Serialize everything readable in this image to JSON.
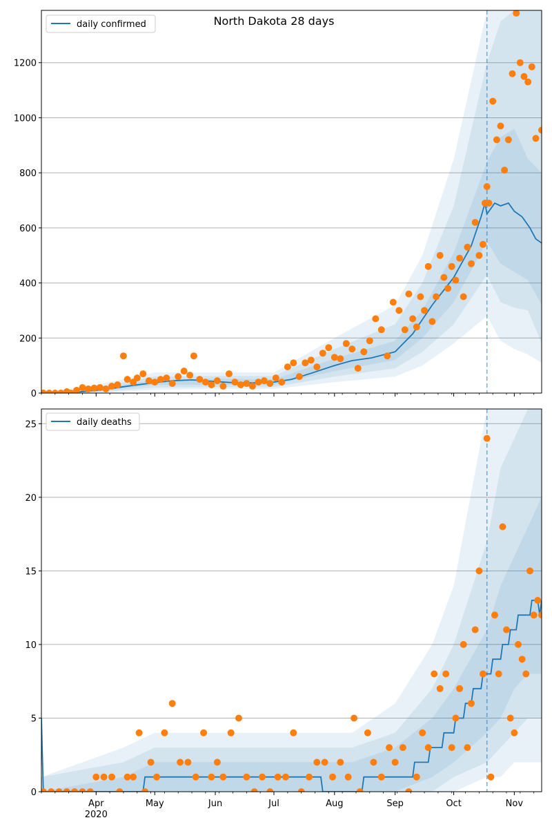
{
  "colors": {
    "line": "#1f77b4",
    "points": "#ff7f0e",
    "band": "#1f77b4",
    "grid": "#b0b0b0"
  },
  "chart_data": [
    {
      "type": "line",
      "title": "North Dakota 28 days",
      "legend": {
        "label": "daily confirmed",
        "placement": "top-left"
      },
      "ylim": [
        0,
        1390
      ],
      "yticks": [
        0,
        200,
        400,
        600,
        800,
        1000,
        1200
      ],
      "xticks": [
        {
          "date": "2020-04-01",
          "label": "Apr",
          "sublabel": "2020"
        },
        {
          "date": "2020-05-01",
          "label": "May"
        },
        {
          "date": "2020-06-01",
          "label": "Jun"
        },
        {
          "date": "2020-07-01",
          "label": "Jul"
        },
        {
          "date": "2020-08-01",
          "label": "Aug"
        },
        {
          "date": "2020-09-01",
          "label": "Sep"
        },
        {
          "date": "2020-10-01",
          "label": "Oct"
        },
        {
          "date": "2020-11-01",
          "label": "Nov"
        }
      ],
      "xlim": [
        "2020-03-04",
        "2020-11-15"
      ],
      "forecast_start": "2020-10-18",
      "grid": "horizontal",
      "line": {
        "x": [
          "2020-03-04",
          "2020-03-20",
          "2020-04-01",
          "2020-04-10",
          "2020-04-20",
          "2020-05-01",
          "2020-05-10",
          "2020-05-20",
          "2020-06-01",
          "2020-06-10",
          "2020-06-20",
          "2020-07-01",
          "2020-07-10",
          "2020-07-20",
          "2020-08-01",
          "2020-08-10",
          "2020-08-20",
          "2020-09-01",
          "2020-09-10",
          "2020-09-20",
          "2020-10-01",
          "2020-10-10",
          "2020-10-15",
          "2020-10-17",
          "2020-10-18",
          "2020-10-22",
          "2020-10-25",
          "2020-10-29",
          "2020-11-01",
          "2020-11-05",
          "2020-11-09",
          "2020-11-12",
          "2020-11-15"
        ],
        "y": [
          0,
          2,
          10,
          18,
          28,
          38,
          45,
          48,
          42,
          38,
          37,
          40,
          50,
          72,
          100,
          118,
          128,
          150,
          215,
          320,
          420,
          535,
          640,
          690,
          650,
          690,
          680,
          690,
          660,
          640,
          600,
          560,
          545
        ]
      },
      "band_inner": {
        "x": [
          "2020-03-04",
          "2020-04-01",
          "2020-05-01",
          "2020-06-01",
          "2020-07-01",
          "2020-08-01",
          "2020-09-01",
          "2020-09-15",
          "2020-10-01",
          "2020-10-18",
          "2020-10-25",
          "2020-11-01",
          "2020-11-08",
          "2020-11-15"
        ],
        "lower": [
          0,
          5,
          30,
          30,
          30,
          80,
          120,
          200,
          330,
          550,
          470,
          440,
          410,
          320
        ],
        "upper": [
          0,
          15,
          48,
          52,
          50,
          125,
          190,
          300,
          510,
          840,
          930,
          960,
          850,
          800
        ]
      },
      "band_mid": {
        "x": [
          "2020-03-04",
          "2020-04-01",
          "2020-05-01",
          "2020-06-01",
          "2020-07-01",
          "2020-08-01",
          "2020-09-01",
          "2020-09-15",
          "2020-10-01",
          "2020-10-18",
          "2020-10-25",
          "2020-11-01",
          "2020-11-08",
          "2020-11-15"
        ],
        "lower": [
          0,
          2,
          20,
          22,
          22,
          60,
          90,
          150,
          250,
          430,
          330,
          310,
          300,
          180
        ],
        "upper": [
          0,
          22,
          60,
          62,
          62,
          160,
          250,
          400,
          680,
          1200,
          1350,
          1390,
          1390,
          1390
        ]
      },
      "band_outer": {
        "x": [
          "2020-03-04",
          "2020-04-01",
          "2020-05-01",
          "2020-06-01",
          "2020-07-01",
          "2020-08-01",
          "2020-09-01",
          "2020-09-15",
          "2020-10-01",
          "2020-10-18",
          "2020-10-25",
          "2020-11-01",
          "2020-11-08",
          "2020-11-15"
        ],
        "lower": [
          0,
          0,
          12,
          15,
          15,
          40,
          60,
          100,
          180,
          280,
          190,
          160,
          140,
          110
        ],
        "upper": [
          0,
          30,
          75,
          75,
          75,
          200,
          320,
          500,
          850,
          1390,
          1390,
          1390,
          1390,
          1390
        ]
      },
      "points": {
        "x": [
          "2020-03-05",
          "2020-03-08",
          "2020-03-11",
          "2020-03-14",
          "2020-03-17",
          "2020-03-19",
          "2020-03-22",
          "2020-03-25",
          "2020-03-28",
          "2020-03-31",
          "2020-04-03",
          "2020-04-06",
          "2020-04-09",
          "2020-04-12",
          "2020-04-15",
          "2020-04-17",
          "2020-04-20",
          "2020-04-22",
          "2020-04-25",
          "2020-04-28",
          "2020-05-01",
          "2020-05-04",
          "2020-05-07",
          "2020-05-10",
          "2020-05-13",
          "2020-05-16",
          "2020-05-19",
          "2020-05-21",
          "2020-05-24",
          "2020-05-27",
          "2020-05-30",
          "2020-06-02",
          "2020-06-05",
          "2020-06-08",
          "2020-06-11",
          "2020-06-14",
          "2020-06-17",
          "2020-06-20",
          "2020-06-23",
          "2020-06-26",
          "2020-06-29",
          "2020-07-02",
          "2020-07-05",
          "2020-07-08",
          "2020-07-11",
          "2020-07-14",
          "2020-07-17",
          "2020-07-20",
          "2020-07-23",
          "2020-07-26",
          "2020-07-29",
          "2020-08-01",
          "2020-08-04",
          "2020-08-07",
          "2020-08-10",
          "2020-08-13",
          "2020-08-16",
          "2020-08-19",
          "2020-08-22",
          "2020-08-25",
          "2020-08-28",
          "2020-08-31",
          "2020-09-03",
          "2020-09-06",
          "2020-09-08",
          "2020-09-10",
          "2020-09-12",
          "2020-09-14",
          "2020-09-16",
          "2020-09-18",
          "2020-09-20",
          "2020-09-22",
          "2020-09-24",
          "2020-09-26",
          "2020-09-28",
          "2020-09-30",
          "2020-10-02",
          "2020-10-04",
          "2020-10-06",
          "2020-10-08",
          "2020-10-10",
          "2020-10-12",
          "2020-10-14",
          "2020-10-16",
          "2020-10-17",
          "2020-10-18",
          "2020-10-19",
          "2020-10-21",
          "2020-10-23",
          "2020-10-25",
          "2020-10-27",
          "2020-10-29",
          "2020-10-31",
          "2020-11-02",
          "2020-11-04",
          "2020-11-06",
          "2020-11-08",
          "2020-11-10",
          "2020-11-12",
          "2020-11-15"
        ],
        "y": [
          0,
          0,
          0,
          0,
          5,
          0,
          10,
          20,
          15,
          18,
          20,
          15,
          25,
          30,
          135,
          50,
          40,
          55,
          70,
          45,
          40,
          50,
          55,
          35,
          60,
          80,
          65,
          135,
          50,
          40,
          30,
          45,
          25,
          70,
          40,
          30,
          35,
          25,
          40,
          45,
          35,
          55,
          40,
          95,
          110,
          60,
          110,
          120,
          95,
          145,
          165,
          130,
          125,
          180,
          160,
          90,
          150,
          190,
          270,
          230,
          135,
          330,
          300,
          230,
          360,
          270,
          240,
          350,
          300,
          460,
          260,
          350,
          500,
          420,
          380,
          460,
          410,
          490,
          350,
          530,
          470,
          620,
          500,
          540,
          690,
          750,
          690,
          1060,
          920,
          970,
          810,
          920,
          1160,
          1380,
          1200,
          1150,
          1130,
          1185,
          925,
          955
        ]
      }
    },
    {
      "type": "line",
      "title": "",
      "legend": {
        "label": "daily deaths",
        "placement": "top-left"
      },
      "ylim": [
        0,
        26
      ],
      "yticks": [
        0,
        5,
        10,
        15,
        20,
        25
      ],
      "xlim": [
        "2020-03-04",
        "2020-11-15"
      ],
      "forecast_start": "2020-10-18",
      "grid": "horizontal",
      "line": {
        "x": [
          "2020-03-04",
          "2020-03-05",
          "2020-03-06",
          "2020-04-25",
          "2020-04-26",
          "2020-07-25",
          "2020-07-26",
          "2020-08-15",
          "2020-08-16",
          "2020-09-10",
          "2020-09-11",
          "2020-09-18",
          "2020-09-19",
          "2020-09-25",
          "2020-09-26",
          "2020-10-01",
          "2020-10-02",
          "2020-10-06",
          "2020-10-07",
          "2020-10-10",
          "2020-10-11",
          "2020-10-15",
          "2020-10-16",
          "2020-10-20",
          "2020-10-21",
          "2020-10-25",
          "2020-10-26",
          "2020-10-29",
          "2020-10-30",
          "2020-11-02",
          "2020-11-03",
          "2020-11-09",
          "2020-11-10",
          "2020-11-13",
          "2020-11-14",
          "2020-11-15"
        ],
        "y": [
          5,
          0,
          0,
          0,
          1,
          1,
          0,
          0,
          1,
          1,
          2,
          2,
          3,
          3,
          4,
          4,
          5,
          5,
          6,
          6,
          7,
          7,
          8,
          8,
          9,
          9,
          10,
          10,
          11,
          11,
          12,
          12,
          13,
          13,
          12,
          13
        ]
      },
      "band_inner": {
        "x": [
          "2020-03-04",
          "2020-04-15",
          "2020-05-01",
          "2020-07-20",
          "2020-08-10",
          "2020-09-01",
          "2020-09-20",
          "2020-10-01",
          "2020-10-18",
          "2020-10-25",
          "2020-11-01",
          "2020-11-08",
          "2020-11-15"
        ],
        "lower": [
          0,
          0,
          0,
          0,
          0,
          0,
          1,
          2,
          4,
          5,
          7,
          8,
          8
        ],
        "upper": [
          0,
          1,
          2,
          2,
          2,
          3,
          5,
          7,
          11,
          14,
          16,
          18,
          20
        ]
      },
      "band_mid": {
        "x": [
          "2020-03-04",
          "2020-04-15",
          "2020-05-01",
          "2020-07-20",
          "2020-08-10",
          "2020-09-01",
          "2020-09-20",
          "2020-10-01",
          "2020-10-18",
          "2020-10-25",
          "2020-11-01",
          "2020-11-08",
          "2020-11-15"
        ],
        "lower": [
          0,
          0,
          0,
          0,
          0,
          0,
          0,
          1,
          2,
          3,
          4,
          5,
          5
        ],
        "upper": [
          1,
          2,
          3,
          3,
          3,
          4,
          7,
          10,
          17,
          22,
          24,
          26,
          26
        ]
      },
      "band_outer": {
        "x": [
          "2020-03-04",
          "2020-04-15",
          "2020-05-01",
          "2020-07-20",
          "2020-08-10",
          "2020-09-01",
          "2020-09-20",
          "2020-10-01",
          "2020-10-18",
          "2020-10-25",
          "2020-11-01",
          "2020-11-08",
          "2020-11-15"
        ],
        "lower": [
          0,
          0,
          0,
          0,
          0,
          0,
          0,
          0,
          1,
          1,
          2,
          2,
          2
        ],
        "upper": [
          1,
          3,
          4,
          4,
          4,
          6,
          10,
          14,
          26,
          26,
          26,
          26,
          26
        ]
      },
      "points": {
        "x": [
          "2020-03-05",
          "2020-03-09",
          "2020-03-13",
          "2020-03-17",
          "2020-03-21",
          "2020-03-25",
          "2020-03-29",
          "2020-04-01",
          "2020-04-05",
          "2020-04-09",
          "2020-04-13",
          "2020-04-17",
          "2020-04-20",
          "2020-04-23",
          "2020-04-26",
          "2020-04-29",
          "2020-05-02",
          "2020-05-06",
          "2020-05-10",
          "2020-05-14",
          "2020-05-18",
          "2020-05-22",
          "2020-05-26",
          "2020-05-30",
          "2020-06-02",
          "2020-06-05",
          "2020-06-09",
          "2020-06-13",
          "2020-06-17",
          "2020-06-21",
          "2020-06-25",
          "2020-06-29",
          "2020-07-03",
          "2020-07-07",
          "2020-07-11",
          "2020-07-15",
          "2020-07-19",
          "2020-07-23",
          "2020-07-27",
          "2020-07-31",
          "2020-08-04",
          "2020-08-08",
          "2020-08-11",
          "2020-08-14",
          "2020-08-18",
          "2020-08-21",
          "2020-08-25",
          "2020-08-29",
          "2020-09-01",
          "2020-09-05",
          "2020-09-08",
          "2020-09-12",
          "2020-09-15",
          "2020-09-18",
          "2020-09-21",
          "2020-09-24",
          "2020-09-27",
          "2020-09-30",
          "2020-10-02",
          "2020-10-04",
          "2020-10-06",
          "2020-10-08",
          "2020-10-10",
          "2020-10-12",
          "2020-10-14",
          "2020-10-16",
          "2020-10-18",
          "2020-10-20",
          "2020-10-22",
          "2020-10-24",
          "2020-10-26",
          "2020-10-28",
          "2020-10-30",
          "2020-11-01",
          "2020-11-03",
          "2020-11-05",
          "2020-11-07",
          "2020-11-09",
          "2020-11-11",
          "2020-11-13",
          "2020-11-15"
        ],
        "y": [
          0,
          0,
          0,
          0,
          0,
          0,
          0,
          1,
          1,
          1,
          0,
          1,
          1,
          4,
          0,
          2,
          1,
          4,
          6,
          2,
          2,
          1,
          4,
          1,
          2,
          1,
          4,
          5,
          1,
          0,
          1,
          0,
          1,
          1,
          4,
          0,
          1,
          2,
          2,
          1,
          2,
          1,
          5,
          0,
          4,
          2,
          1,
          3,
          2,
          3,
          0,
          1,
          4,
          3,
          8,
          7,
          8,
          3,
          5,
          7,
          10,
          3,
          6,
          11,
          15,
          8,
          24,
          1,
          12,
          8,
          18,
          11,
          5,
          4,
          10,
          9,
          8,
          15,
          12,
          13,
          12
        ]
      }
    }
  ]
}
